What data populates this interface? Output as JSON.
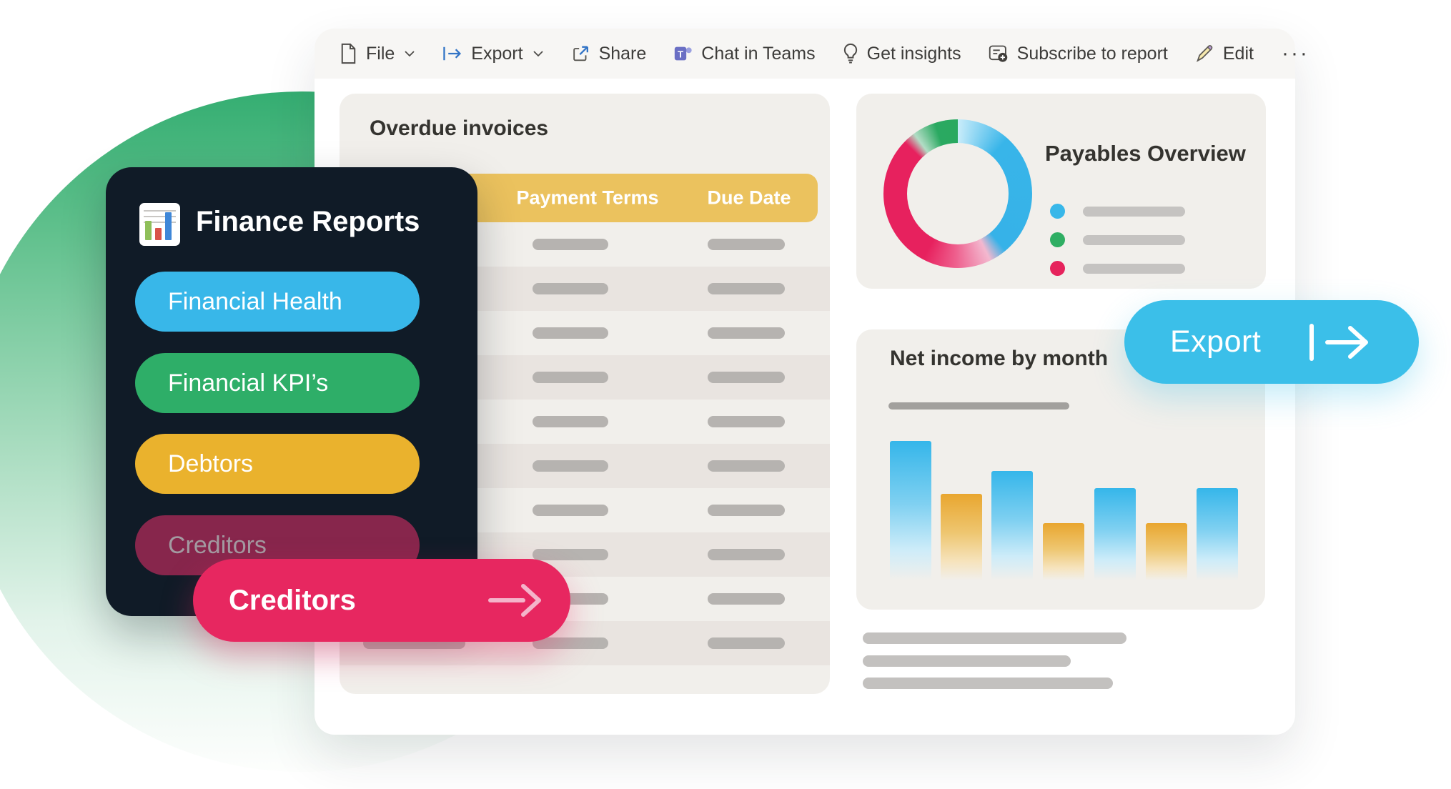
{
  "toolbar": {
    "items": [
      {
        "label": "File",
        "icon": "file-icon",
        "has_chevron": true
      },
      {
        "label": "Export",
        "icon": "export-icon",
        "has_chevron": true
      },
      {
        "label": "Share",
        "icon": "share-icon",
        "has_chevron": false
      },
      {
        "label": "Chat in Teams",
        "icon": "teams-icon",
        "has_chevron": false
      },
      {
        "label": "Get insights",
        "icon": "lightbulb-icon",
        "has_chevron": false
      },
      {
        "label": "Subscribe to report",
        "icon": "subscribe-icon",
        "has_chevron": false
      },
      {
        "label": "Edit",
        "icon": "pencil-icon",
        "has_chevron": false
      }
    ],
    "more_label": "···"
  },
  "sidebar": {
    "title": "Finance Reports",
    "logo_icon": "bar-chart-icon",
    "items": [
      {
        "label": "Financial Health",
        "color": "#38b7e9",
        "text_color": "#ffffff"
      },
      {
        "label": "Financial KPI’s",
        "color": "#2eae68",
        "text_color": "#ffffff"
      },
      {
        "label": "Debtors",
        "color": "#eab22d",
        "text_color": "#ffffff"
      },
      {
        "label": "Creditors",
        "color": "#87264c",
        "text_color": "#a39aa1"
      }
    ]
  },
  "creditors_callout": {
    "label": "Creditors",
    "arrow_icon": "arrow-right-icon",
    "color": "#e72760"
  },
  "export_callout": {
    "label": "Export",
    "arrow_icon": "bar-arrow-right-icon",
    "color": "#3bbfe9"
  },
  "overdue": {
    "title": "Overdue invoices",
    "columns": [
      "Payment Terms",
      "Due Date"
    ],
    "row_count": 10,
    "striped_rows": [
      1,
      3,
      5,
      7,
      9
    ],
    "header_color": "#ebc25e"
  },
  "payables": {
    "title": "Payables Overview",
    "legend": [
      {
        "color": "#38b7e9"
      },
      {
        "color": "#2fae63"
      },
      {
        "color": "#e6235c"
      }
    ]
  },
  "net_income": {
    "title": "Net income by month"
  },
  "chart_data": [
    {
      "type": "pie",
      "title": "Payables Overview",
      "style": "donut",
      "slices": [
        {
          "label": "segment-blue",
          "value": 39,
          "color": "#36b3e9"
        },
        {
          "label": "segment-pink",
          "value": 49,
          "color": "#e7215e"
        },
        {
          "label": "segment-green",
          "value": 12,
          "color": "#29a960"
        }
      ],
      "legend_position": "right",
      "data_labels": false
    },
    {
      "type": "bar",
      "title": "Net income by month",
      "categories": [
        "1",
        "2",
        "3",
        "4",
        "5",
        "6",
        "7"
      ],
      "values": [
        97,
        60,
        76,
        40,
        64,
        40,
        64
      ],
      "bar_palette": [
        "blue",
        "yellow",
        "blue",
        "yellow",
        "blue",
        "yellow",
        "blue"
      ],
      "xlabel": "",
      "ylabel": "",
      "ylim": [
        0,
        100
      ],
      "grid": false,
      "note": "relative placeholder heights, no axis labels shown"
    }
  ],
  "colors": {
    "accent_cyan": "#38b7e9",
    "accent_green": "#2eae68",
    "accent_yellow": "#eab22d",
    "accent_maroon": "#87264c",
    "accent_pink": "#e72760",
    "sidebar_bg": "#101b27",
    "table_header_yellow": "#ebc25e",
    "card_bg": "#f1efeb",
    "circle_green": "#35ae72"
  }
}
